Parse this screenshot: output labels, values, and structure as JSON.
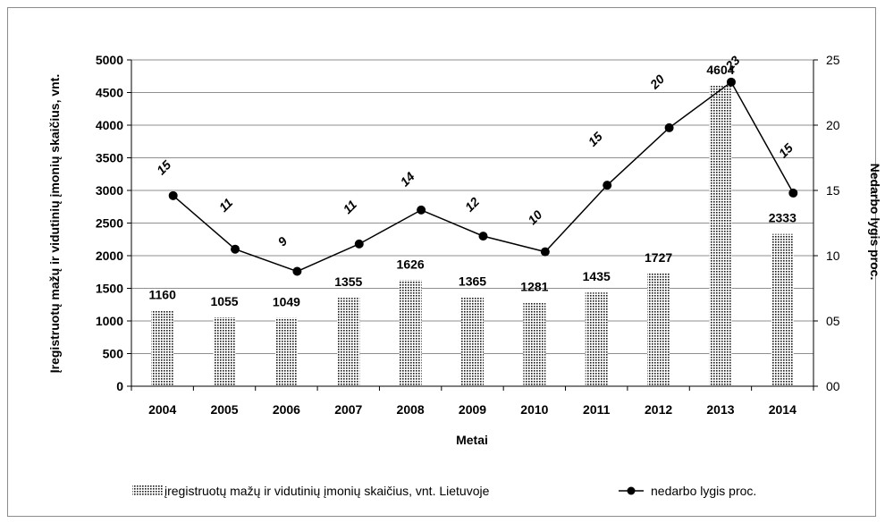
{
  "chart_data": {
    "type": "bar",
    "categories": [
      "2004",
      "2005",
      "2006",
      "2007",
      "2008",
      "2009",
      "2010",
      "2011",
      "2012",
      "2013",
      "2014"
    ],
    "series": [
      {
        "name": "įregistruotų mažų ir vidutinių įmonių skaičius, vnt. Lietuvoje",
        "kind": "bar",
        "axis": "left",
        "values": [
          1160,
          1055,
          1049,
          1355,
          1626,
          1365,
          1281,
          1435,
          1727,
          4604,
          2333
        ]
      },
      {
        "name": "nedarbo lygis proc.",
        "kind": "line",
        "axis": "right",
        "values": [
          15,
          11,
          9,
          11,
          14,
          12,
          10,
          15,
          20,
          23,
          15
        ],
        "plotted": [
          14.6,
          10.5,
          8.8,
          10.9,
          13.5,
          11.5,
          10.3,
          15.4,
          19.8,
          23.3,
          14.8
        ]
      }
    ],
    "xlabel": "Metai",
    "ylabel": "Įregistruotų mažų ir vidutinių įmonių skaičius, vnt.",
    "y2label": "Nedarbo lygis proc.",
    "ylim": [
      0,
      5000
    ],
    "y2lim": [
      0,
      25
    ],
    "yticks": [
      "0",
      "500",
      "1000",
      "1500",
      "2000",
      "2500",
      "3000",
      "3500",
      "4000",
      "4500",
      "5000"
    ],
    "y2ticks": [
      "00",
      "05",
      "10",
      "15",
      "20",
      "25"
    ],
    "grid": true,
    "legend": "bottom"
  }
}
